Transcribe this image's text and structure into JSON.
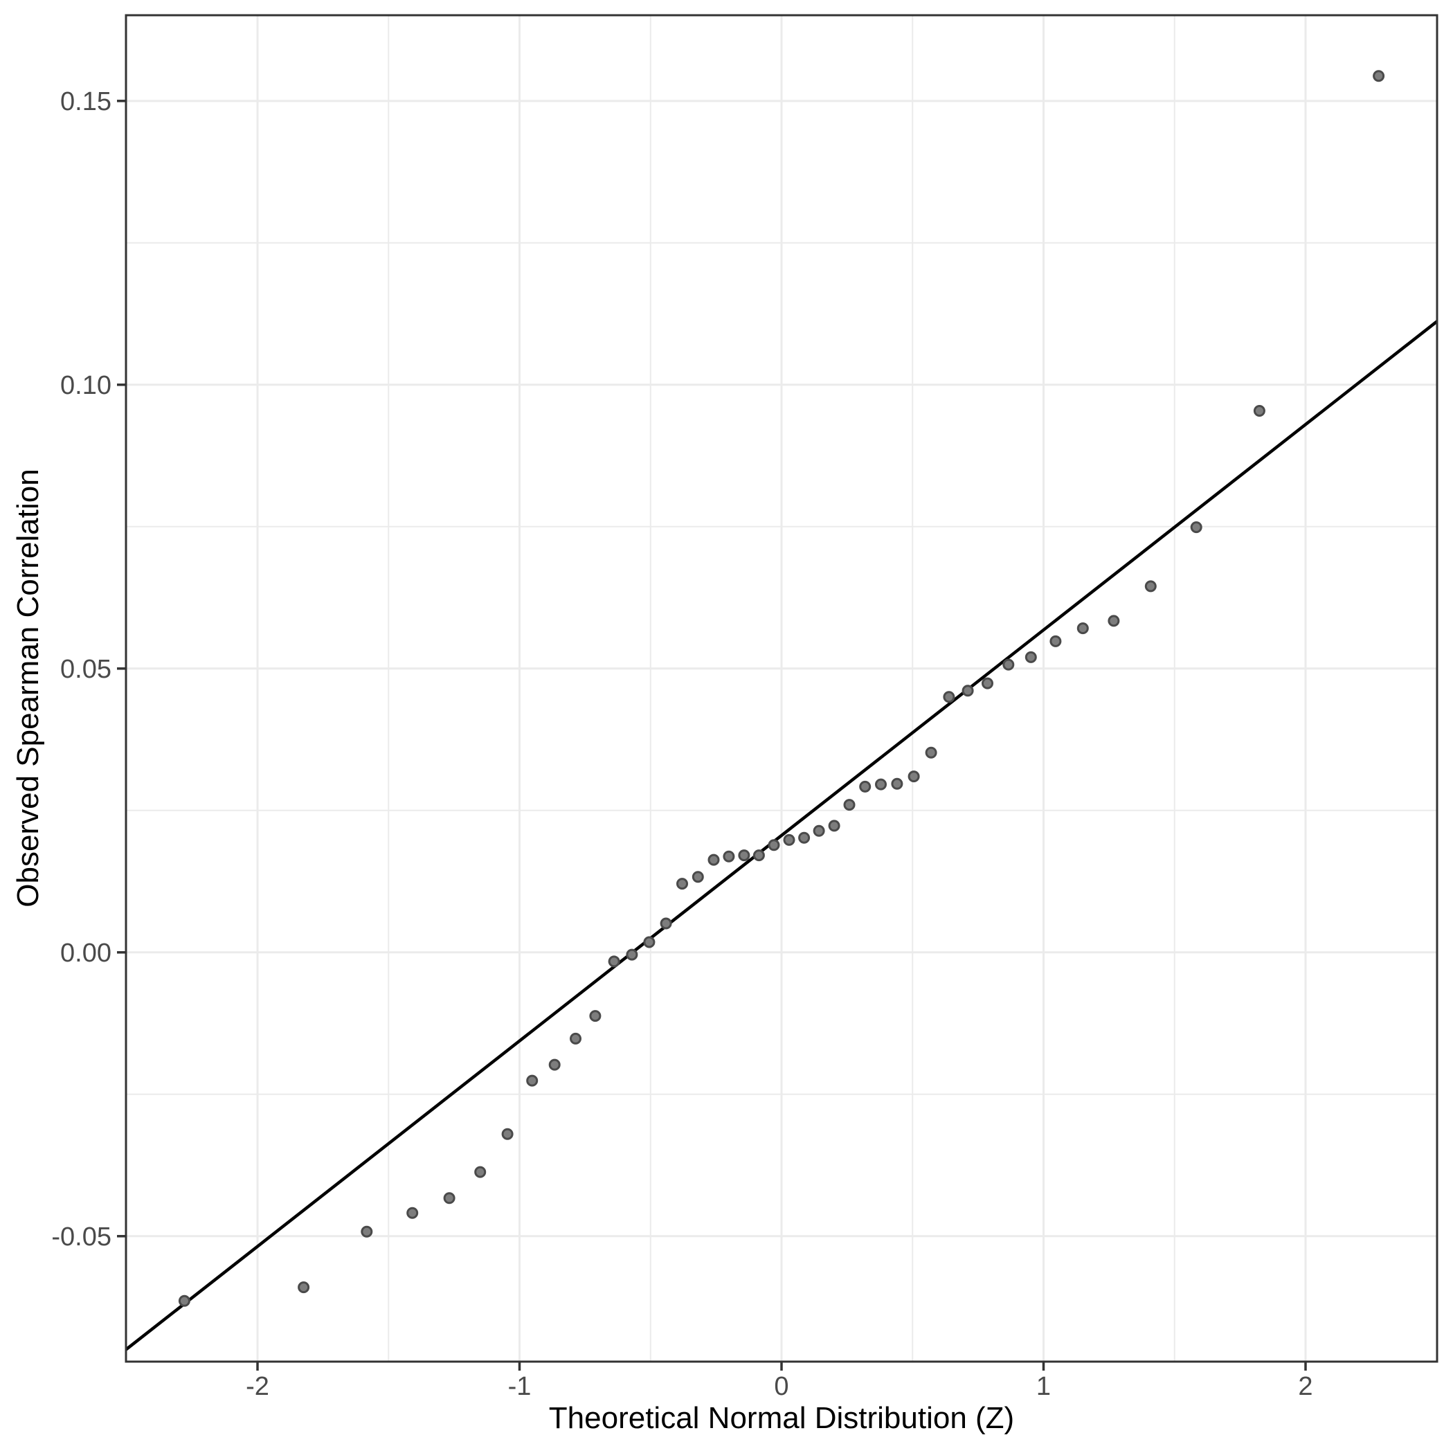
{
  "chart_data": {
    "type": "scatter",
    "title": "",
    "xlabel": "Theoretical Normal Distribution (Z)",
    "ylabel": "Observed Spearman Correlation",
    "xlim": [
      -2.502,
      2.502
    ],
    "ylim": [
      -0.0721,
      0.1651
    ],
    "grid": true,
    "legend": "none",
    "x_ticks": [
      -2,
      -1,
      0,
      1,
      2
    ],
    "x_tick_labels": [
      "-2",
      "-1",
      "0",
      "1",
      "2"
    ],
    "x_minor": [
      -1.5,
      -0.5,
      0.5,
      1.5
    ],
    "y_ticks": [
      0.15,
      0.1,
      0.05,
      0.0,
      -0.05
    ],
    "y_tick_labels": [
      "0.15",
      "0.10",
      "0.05",
      "0.00",
      "-0.05"
    ],
    "y_minor": [
      0.125,
      0.075,
      0.025,
      -0.025
    ],
    "ref_line": {
      "intercept": 0.0206,
      "slope": 0.0362
    },
    "points": [
      [
        -2.279,
        -0.0614
      ],
      [
        -1.824,
        -0.059
      ],
      [
        -1.583,
        -0.0492
      ],
      [
        -1.409,
        -0.0459
      ],
      [
        -1.268,
        -0.0433
      ],
      [
        -1.15,
        -0.0387
      ],
      [
        -1.046,
        -0.032
      ],
      [
        -0.952,
        -0.0226
      ],
      [
        -0.866,
        -0.0198
      ],
      [
        -0.786,
        -0.0152
      ],
      [
        -0.711,
        -0.0112
      ],
      [
        -0.639,
        -0.0016
      ],
      [
        -0.571,
        -0.0004
      ],
      [
        -0.505,
        0.0018
      ],
      [
        -0.441,
        0.0051
      ],
      [
        -0.379,
        0.0121
      ],
      [
        -0.319,
        0.0133
      ],
      [
        -0.259,
        0.0163
      ],
      [
        -0.201,
        0.0169
      ],
      [
        -0.143,
        0.0171
      ],
      [
        -0.086,
        0.0171
      ],
      [
        -0.029,
        0.0189
      ],
      [
        0.029,
        0.0198
      ],
      [
        0.086,
        0.0202
      ],
      [
        0.143,
        0.0214
      ],
      [
        0.201,
        0.0223
      ],
      [
        0.259,
        0.026
      ],
      [
        0.319,
        0.0292
      ],
      [
        0.379,
        0.0296
      ],
      [
        0.441,
        0.0297
      ],
      [
        0.505,
        0.031
      ],
      [
        0.571,
        0.0352
      ],
      [
        0.639,
        0.045
      ],
      [
        0.711,
        0.0461
      ],
      [
        0.786,
        0.0474
      ],
      [
        0.866,
        0.0507
      ],
      [
        0.952,
        0.052
      ],
      [
        1.046,
        0.0548
      ],
      [
        1.15,
        0.0571
      ],
      [
        1.268,
        0.0584
      ],
      [
        1.409,
        0.0645
      ],
      [
        1.583,
        0.0749
      ],
      [
        1.824,
        0.0954
      ],
      [
        2.279,
        0.1544
      ]
    ]
  },
  "colors": {
    "background": "#ffffff",
    "grid": "#ebebeb",
    "panel_border": "#333333",
    "tick_mark": "#333333",
    "tick_label": "#4a4a4a",
    "axis_title": "#000000",
    "ref_line": "#000000",
    "point_fill": "#7d7d7d",
    "point_stroke": "#4a4a4a"
  }
}
